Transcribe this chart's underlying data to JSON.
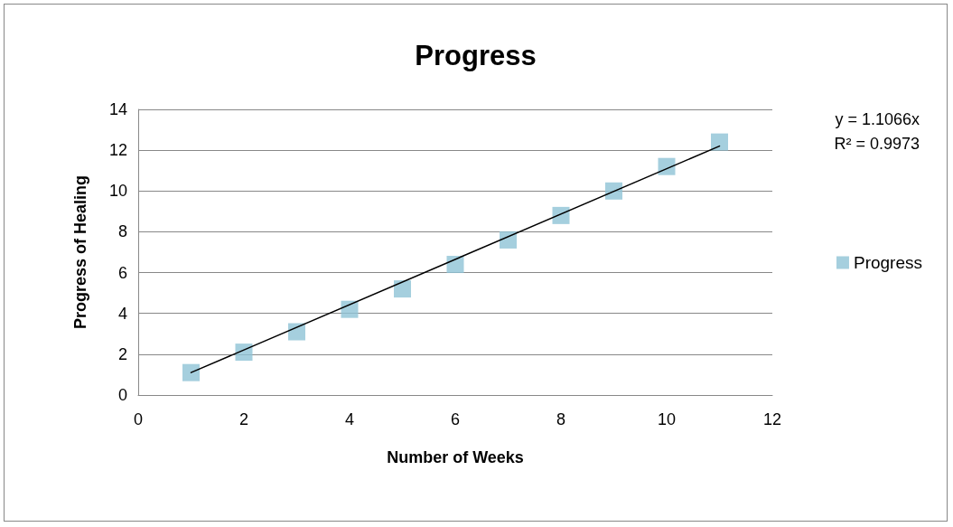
{
  "chart_data": {
    "type": "scatter",
    "title": "Progress",
    "xlabel": "Number of Weeks",
    "ylabel": "Progress of Healing",
    "x": [
      1,
      2,
      3,
      4,
      5,
      6,
      7,
      8,
      9,
      10,
      11
    ],
    "series": [
      {
        "name": "Progress",
        "color": "#8fc3d6",
        "marker": "square",
        "values": [
          1.1,
          2.1,
          3.1,
          4.2,
          5.2,
          6.4,
          7.6,
          8.8,
          10.0,
          11.2,
          12.4
        ]
      },
      {
        "type": "line",
        "color": "#000000",
        "marker": "none",
        "x": [
          1,
          11
        ],
        "values": [
          1.1,
          12.2
        ]
      }
    ],
    "xlim": [
      0,
      12
    ],
    "xticks": [
      0,
      2,
      4,
      6,
      8,
      10,
      12
    ],
    "ylim": [
      0,
      14
    ],
    "yticks": [
      0,
      2,
      4,
      6,
      8,
      10,
      12,
      14
    ],
    "grid": "y",
    "legend": "right",
    "annotations": [
      "y = 1.1066x",
      "R² = 0.9973"
    ]
  }
}
